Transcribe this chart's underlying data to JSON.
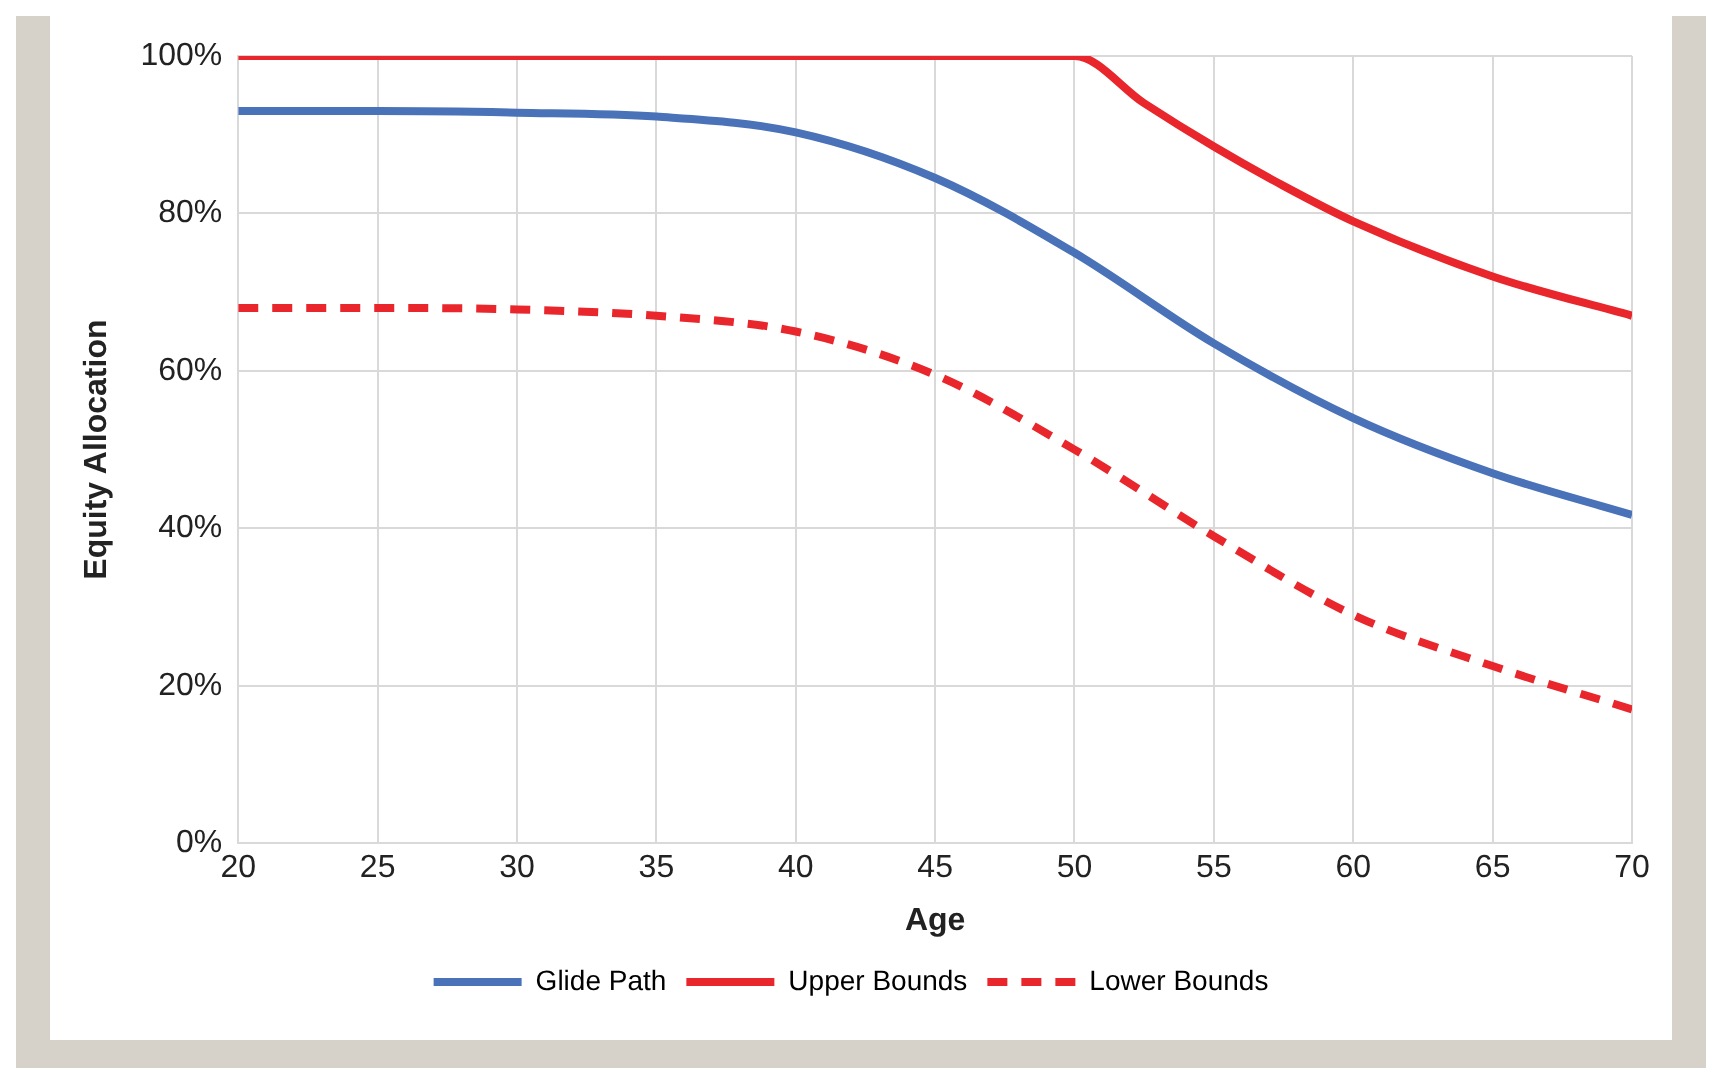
{
  "chart_data": {
    "type": "line",
    "xlabel": "Age",
    "ylabel": "Equity Allocation",
    "xlim": [
      20,
      70
    ],
    "xticks": [
      20,
      25,
      30,
      35,
      40,
      45,
      50,
      55,
      60,
      65,
      70
    ],
    "ylim": [
      0,
      100
    ],
    "yticks": [
      {
        "value": 0,
        "label": "0%"
      },
      {
        "value": 20,
        "label": "20%"
      },
      {
        "value": 40,
        "label": "40%"
      },
      {
        "value": 60,
        "label": "60%"
      },
      {
        "value": 80,
        "label": "80%"
      },
      {
        "value": 100,
        "label": "100%"
      }
    ],
    "grid": true,
    "legend": "bottom",
    "marker": "none",
    "series": [
      {
        "name": "Glide Path",
        "color": "#4a72b8",
        "line_style": "solid",
        "x": [
          20,
          25,
          30,
          35,
          40,
          45,
          50,
          55,
          60,
          65,
          70
        ],
        "values": [
          93,
          93,
          92.8,
          92.3,
          90.3,
          84.5,
          75,
          63.5,
          54,
          47,
          41.7
        ]
      },
      {
        "name": "Upper Bounds",
        "color": "#e8262b",
        "line_style": "solid",
        "x": [
          20,
          30,
          40,
          50,
          52.5,
          55,
          57.5,
          60,
          65,
          70
        ],
        "values": [
          100,
          100,
          100,
          100,
          94,
          88.5,
          83.5,
          79,
          72,
          67
        ]
      },
      {
        "name": "Lower Bounds",
        "color": "#e8262b",
        "line_style": "dashed",
        "x": [
          20,
          25,
          30,
          35,
          40,
          45,
          50,
          55,
          60,
          65,
          70
        ],
        "values": [
          68,
          68,
          67.8,
          67,
          65,
          59.5,
          50,
          39,
          29,
          22.5,
          17
        ]
      }
    ]
  }
}
